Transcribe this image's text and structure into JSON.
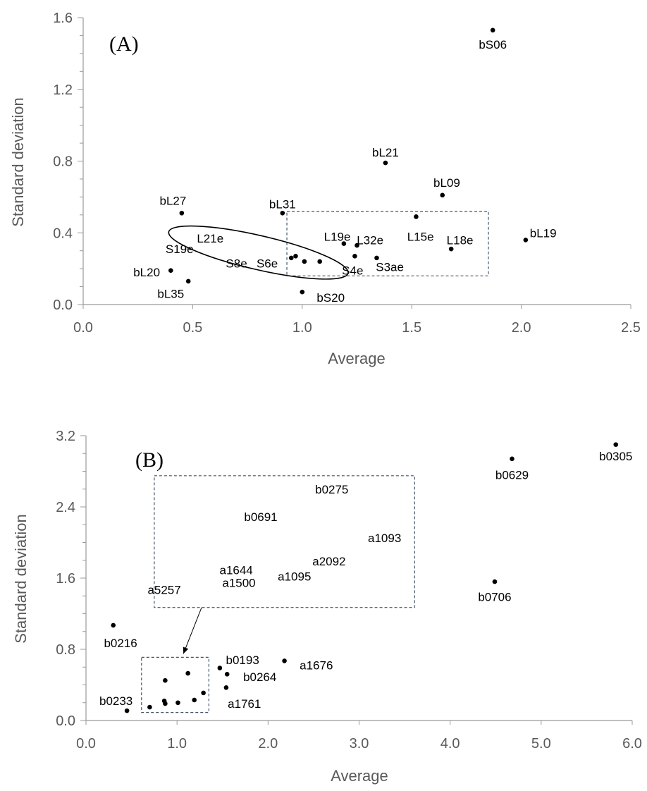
{
  "chart_data": [
    {
      "type": "scatter",
      "panel_label": "(A)",
      "xlabel": "Average",
      "ylabel": "Standard deviation",
      "xlim": [
        0,
        2.5
      ],
      "ylim": [
        0,
        1.6
      ],
      "x_ticks": [
        "0.0",
        "0.5",
        "1.0",
        "1.5",
        "2.0",
        "2.5"
      ],
      "y_ticks": [
        "0.0",
        "0.4",
        "0.8",
        "1.2",
        "1.6"
      ],
      "points": [
        {
          "x": 1.87,
          "y": 1.53
        },
        {
          "x": 1.38,
          "y": 0.79
        },
        {
          "x": 1.64,
          "y": 0.61
        },
        {
          "x": 2.02,
          "y": 0.36
        },
        {
          "x": 0.45,
          "y": 0.51
        },
        {
          "x": 0.91,
          "y": 0.51
        },
        {
          "x": 1.52,
          "y": 0.49
        },
        {
          "x": 1.19,
          "y": 0.34
        },
        {
          "x": 1.25,
          "y": 0.33
        },
        {
          "x": 1.68,
          "y": 0.31
        },
        {
          "x": 1.24,
          "y": 0.27
        },
        {
          "x": 1.34,
          "y": 0.26
        },
        {
          "x": 0.95,
          "y": 0.26
        },
        {
          "x": 0.97,
          "y": 0.27
        },
        {
          "x": 1.01,
          "y": 0.24
        },
        {
          "x": 1.08,
          "y": 0.24
        },
        {
          "x": 0.4,
          "y": 0.19
        },
        {
          "x": 0.48,
          "y": 0.13
        },
        {
          "x": 1.0,
          "y": 0.07
        }
      ],
      "labels": [
        {
          "text": "bS06",
          "x": 1.87,
          "y": 1.45
        },
        {
          "text": "bL21",
          "x": 1.38,
          "y": 0.85
        },
        {
          "text": "bL09",
          "x": 1.66,
          "y": 0.68
        },
        {
          "text": "bL19",
          "x": 2.1,
          "y": 0.4
        },
        {
          "text": "bL27",
          "x": 0.41,
          "y": 0.58
        },
        {
          "text": "bL31",
          "x": 0.91,
          "y": 0.56
        },
        {
          "text": "L15e",
          "x": 1.54,
          "y": 0.38
        },
        {
          "text": "L18e",
          "x": 1.72,
          "y": 0.36
        },
        {
          "text": "L19e",
          "x": 1.16,
          "y": 0.38
        },
        {
          "text": "L32e",
          "x": 1.31,
          "y": 0.36
        },
        {
          "text": "L21e",
          "x": 0.58,
          "y": 0.37
        },
        {
          "text": "S19e",
          "x": 0.44,
          "y": 0.31
        },
        {
          "text": "S8e",
          "x": 0.7,
          "y": 0.23
        },
        {
          "text": "S6e",
          "x": 0.84,
          "y": 0.23
        },
        {
          "text": "S4e",
          "x": 1.23,
          "y": 0.19
        },
        {
          "text": "S3ae",
          "x": 1.4,
          "y": 0.21
        },
        {
          "text": "bL20",
          "x": 0.29,
          "y": 0.18
        },
        {
          "text": "bL35",
          "x": 0.4,
          "y": 0.06
        },
        {
          "text": "bS20",
          "x": 1.13,
          "y": 0.04
        }
      ],
      "dashed_box": {
        "x0": 0.93,
        "x1": 1.85,
        "y0": 0.16,
        "y1": 0.52
      },
      "ellipse": {
        "cx": 0.8,
        "cy": 0.29,
        "rx": 0.42,
        "ry": 0.095,
        "rotation_deg": -13
      }
    },
    {
      "type": "scatter",
      "panel_label": "(B)",
      "xlabel": "Average",
      "ylabel": "Standard deviation",
      "xlim": [
        0,
        6.0
      ],
      "ylim": [
        0,
        3.2
      ],
      "x_ticks": [
        "0.0",
        "1.0",
        "2.0",
        "3.0",
        "4.0",
        "5.0",
        "6.0"
      ],
      "y_ticks": [
        "0.0",
        "0.8",
        "1.6",
        "2.4",
        "3.2"
      ],
      "points": [
        {
          "x": 5.82,
          "y": 3.1
        },
        {
          "x": 4.68,
          "y": 2.94
        },
        {
          "x": 4.49,
          "y": 1.56
        },
        {
          "x": 0.3,
          "y": 1.07
        },
        {
          "x": 2.18,
          "y": 0.67
        },
        {
          "x": 1.47,
          "y": 0.59
        },
        {
          "x": 1.55,
          "y": 0.52
        },
        {
          "x": 1.54,
          "y": 0.37
        },
        {
          "x": 0.45,
          "y": 0.11
        },
        {
          "x": 0.87,
          "y": 0.45
        },
        {
          "x": 1.12,
          "y": 0.53
        },
        {
          "x": 0.86,
          "y": 0.22
        },
        {
          "x": 0.87,
          "y": 0.19
        },
        {
          "x": 0.7,
          "y": 0.15
        },
        {
          "x": 1.01,
          "y": 0.2
        },
        {
          "x": 1.19,
          "y": 0.23
        },
        {
          "x": 1.29,
          "y": 0.31
        }
      ],
      "labels": [
        {
          "text": "b0305",
          "x": 5.82,
          "y": 2.97
        },
        {
          "text": "b0629",
          "x": 4.68,
          "y": 2.76
        },
        {
          "text": "b0706",
          "x": 4.49,
          "y": 1.39
        },
        {
          "text": "b0216",
          "x": 0.38,
          "y": 0.87
        },
        {
          "text": "a1676",
          "x": 2.53,
          "y": 0.62
        },
        {
          "text": "b0193",
          "x": 1.72,
          "y": 0.68
        },
        {
          "text": "b0264",
          "x": 1.91,
          "y": 0.49
        },
        {
          "text": "a1761",
          "x": 1.74,
          "y": 0.19
        },
        {
          "text": "b0233",
          "x": 0.33,
          "y": 0.22
        },
        {
          "text": "b0275",
          "x": 2.7,
          "y": 2.6
        },
        {
          "text": "b0691",
          "x": 1.92,
          "y": 2.29
        },
        {
          "text": "a1093",
          "x": 3.28,
          "y": 2.05
        },
        {
          "text": "a2092",
          "x": 2.67,
          "y": 1.79
        },
        {
          "text": "a1644",
          "x": 1.65,
          "y": 1.69
        },
        {
          "text": "a1095",
          "x": 2.29,
          "y": 1.62
        },
        {
          "text": "a1500",
          "x": 1.68,
          "y": 1.55
        },
        {
          "text": "a5257",
          "x": 0.86,
          "y": 1.47
        }
      ],
      "dashed_box": {
        "x0": 0.61,
        "x1": 1.35,
        "y0": 0.09,
        "y1": 0.71
      },
      "inset_box": {
        "x0": 0.75,
        "x1": 3.61,
        "y0": 1.27,
        "y1": 2.75
      },
      "arrow": {
        "x0": 1.27,
        "y0": 1.27,
        "x1": 1.07,
        "y1": 0.75
      }
    }
  ]
}
